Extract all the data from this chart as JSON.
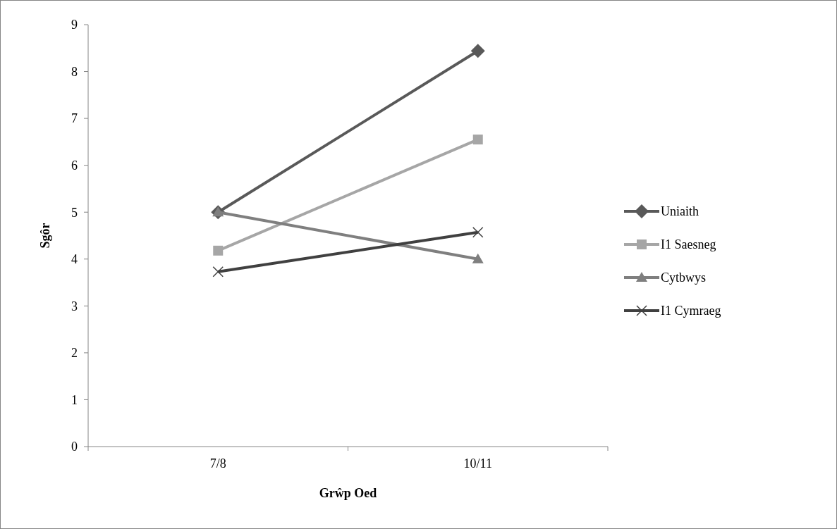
{
  "chart_data": {
    "type": "line",
    "xlabel": "Grŵp Oed",
    "ylabel": "Sgôr",
    "categories": [
      "7/8",
      "10/11"
    ],
    "series": [
      {
        "name": "Uniaith",
        "color": "#595959",
        "marker": "diamond",
        "values": [
          5.0,
          8.44
        ]
      },
      {
        "name": "I1 Saesneg",
        "color": "#a6a6a6",
        "marker": "square",
        "values": [
          4.18,
          6.55
        ]
      },
      {
        "name": "Cytbwys",
        "color": "#7f7f7f",
        "marker": "triangle",
        "values": [
          5.0,
          4.0
        ]
      },
      {
        "name": "I1 Cymraeg",
        "color": "#404040",
        "marker": "cross",
        "values": [
          3.73,
          4.57
        ]
      }
    ],
    "ylim": [
      0,
      9
    ],
    "yticks": [
      0,
      1,
      2,
      3,
      4,
      5,
      6,
      7,
      8,
      9
    ],
    "legend": "right",
    "grid": false,
    "line_style": "solid"
  }
}
